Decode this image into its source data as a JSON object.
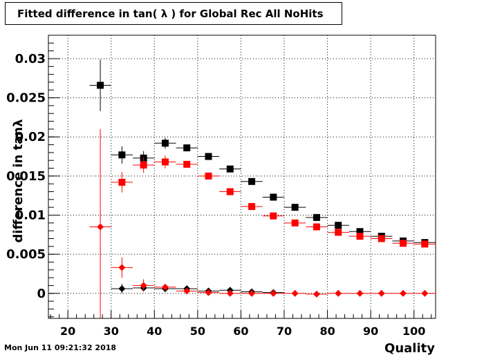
{
  "title": "Fitted difference in tan( λ ) for Global Rec All NoHits",
  "timestamp": "Mon Jun 11 09:21:32 2018",
  "chart_data": {
    "type": "scatter",
    "title": "Fitted difference in tan( λ ) for Global Rec All NoHits",
    "xlabel": "Quality",
    "ylabel": "difference in tanλ",
    "xlim": [
      15.5,
      105
    ],
    "ylim": [
      -0.0032,
      0.033
    ],
    "xticks": [
      20,
      30,
      40,
      50,
      60,
      70,
      80,
      90,
      100
    ],
    "xtick_labels": [
      "20",
      "30",
      "40",
      "50",
      "60",
      "70",
      "80",
      "90",
      "100"
    ],
    "yticks": [
      0,
      0.005,
      0.01,
      0.015,
      0.02,
      0.025,
      0.03
    ],
    "ytick_labels": [
      "0",
      "0.005",
      "0.01",
      "0.015",
      "0.02",
      "0.025",
      "0.03"
    ],
    "grid": true,
    "bin_half_width": 2.5,
    "series": [
      {
        "marker": "square",
        "color": "#000000",
        "x": [
          27.5,
          32.5,
          37.5,
          42.5,
          47.5,
          52.5,
          57.5,
          62.5,
          67.5,
          72.5,
          77.5,
          82.5,
          87.5,
          92.5,
          97.5,
          102.5
        ],
        "y": [
          0.0266,
          0.0177,
          0.0173,
          0.0192,
          0.0186,
          0.0175,
          0.0159,
          0.0143,
          0.0123,
          0.011,
          0.0097,
          0.0087,
          0.0079,
          0.0073,
          0.0067,
          0.0065
        ],
        "yerr": [
          0.0033,
          0.0011,
          0.0009,
          0.0007,
          0.0004,
          0.0003,
          0.0003,
          0.0003,
          0.0003,
          0.0002,
          0.0002,
          0.0002,
          0.0002,
          0.0002,
          0.0002,
          0.0002
        ]
      },
      {
        "marker": "square",
        "color": "#ff0000",
        "x": [
          32.5,
          37.5,
          42.5,
          47.5,
          52.5,
          57.5,
          62.5,
          67.5,
          72.5,
          77.5,
          82.5,
          87.5,
          92.5,
          97.5,
          102.5
        ],
        "y": [
          0.0142,
          0.0164,
          0.0168,
          0.0165,
          0.015,
          0.013,
          0.0111,
          0.0099,
          0.009,
          0.0085,
          0.0078,
          0.0073,
          0.007,
          0.0064,
          0.0063
        ],
        "yerr": [
          0.0013,
          0.001,
          0.0008,
          0.0004,
          0.0003,
          0.0003,
          0.0003,
          0.0003,
          0.0002,
          0.0002,
          0.0002,
          0.0002,
          0.0002,
          0.0002,
          0.0002
        ]
      },
      {
        "marker": "diamond",
        "color": "#000000",
        "x": [
          32.5,
          37.5,
          42.5,
          47.5,
          52.5,
          57.5,
          62.5,
          67.5
        ],
        "y": [
          0.0006,
          0.0007,
          0.0006,
          0.0006,
          0.0003,
          0.0004,
          0.0002,
          0.0001
        ],
        "yerr": [
          0.0006,
          0.0004,
          0.0003,
          0.0002,
          0.0002,
          0.0002,
          0.0002,
          0.0002
        ]
      },
      {
        "marker": "diamond",
        "color": "#ff0000",
        "x": [
          27.5,
          32.5,
          37.5,
          42.5,
          47.5,
          52.5,
          57.5,
          62.5,
          67.5,
          72.5,
          77.5,
          82.5,
          87.5,
          92.5,
          97.5,
          102.5
        ],
        "y": [
          0.0085,
          0.0033,
          0.001,
          0.0008,
          0.0003,
          0.0001,
          0.0,
          0.0,
          0.0,
          0.0,
          -0.0001,
          0.0,
          0.0,
          0.0,
          0.0,
          0.0
        ],
        "yerr": [
          0.0125,
          0.0013,
          0.0008,
          0.0004,
          0.0002,
          0.0002,
          0.0001,
          0.0001,
          0.0001,
          0.0001,
          0.0001,
          0.0001,
          0.0001,
          0.0001,
          0.0001,
          0.0001
        ]
      }
    ]
  }
}
